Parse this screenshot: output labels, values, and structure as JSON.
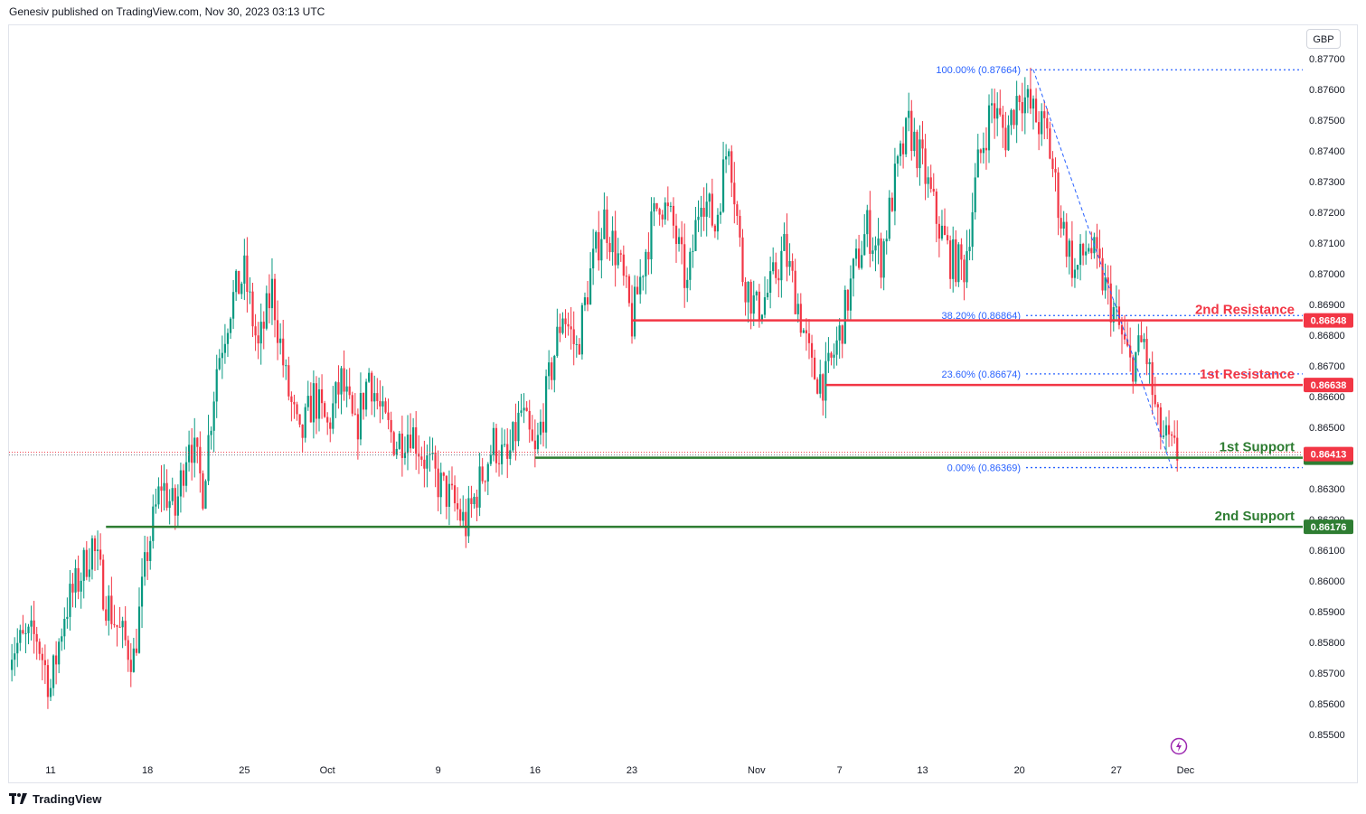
{
  "header": {
    "published": "Genesiv published on TradingView.com, Nov 30, 2023 03:13 UTC"
  },
  "currency": "GBP",
  "footer": {
    "brand": "TradingView",
    "logo_icon": "tradingview-logo-icon"
  },
  "colors": {
    "up": "#089981",
    "down": "#f23645",
    "support": "#2e7d32",
    "resistance": "#f23645",
    "fib": "#2962ff"
  },
  "chart_data": {
    "type": "candlestick",
    "ylim": [
      0.8546,
      0.8773
    ],
    "y_ticks": [
      "0.87700",
      "0.87600",
      "0.87500",
      "0.87400",
      "0.87300",
      "0.87200",
      "0.87100",
      "0.87000",
      "0.86900",
      "0.86800",
      "0.86700",
      "0.86600",
      "0.86500",
      "0.86300",
      "0.86200",
      "0.86100",
      "0.86000",
      "0.85900",
      "0.85800",
      "0.85700",
      "0.85600",
      "0.85500"
    ],
    "x_ticks": [
      {
        "label": "11",
        "day": 0
      },
      {
        "label": "18",
        "day": 7
      },
      {
        "label": "25",
        "day": 14
      },
      {
        "label": "Oct",
        "day": 20
      },
      {
        "label": "9",
        "day": 28
      },
      {
        "label": "16",
        "day": 35
      },
      {
        "label": "23",
        "day": 42
      },
      {
        "label": "Nov",
        "day": 51
      },
      {
        "label": "7",
        "day": 57
      },
      {
        "label": "13",
        "day": 63
      },
      {
        "label": "20",
        "day": 70
      },
      {
        "label": "27",
        "day": 77
      },
      {
        "label": "Dec",
        "day": 82
      }
    ],
    "x_range_days": [
      -3,
      90
    ],
    "close_path": [
      [
        -3,
        0.8578
      ],
      [
        -1,
        0.8582
      ],
      [
        0,
        0.8565
      ],
      [
        1,
        0.859
      ],
      [
        2,
        0.86
      ],
      [
        3,
        0.8612
      ],
      [
        4,
        0.8594
      ],
      [
        5,
        0.8583
      ],
      [
        6,
        0.8575
      ],
      [
        7,
        0.861
      ],
      [
        8,
        0.8632
      ],
      [
        9,
        0.8622
      ],
      [
        10,
        0.8648
      ],
      [
        11,
        0.863
      ],
      [
        12,
        0.867
      ],
      [
        13,
        0.869
      ],
      [
        14,
        0.87
      ],
      [
        15,
        0.8675
      ],
      [
        16,
        0.8695
      ],
      [
        17,
        0.8665
      ],
      [
        18,
        0.8645
      ],
      [
        19,
        0.866
      ],
      [
        20,
        0.865
      ],
      [
        21,
        0.8665
      ],
      [
        22,
        0.8648
      ],
      [
        23,
        0.8668
      ],
      [
        24,
        0.8652
      ],
      [
        25,
        0.8645
      ],
      [
        26,
        0.865
      ],
      [
        27,
        0.864
      ],
      [
        28,
        0.8632
      ],
      [
        29,
        0.8626
      ],
      [
        30,
        0.8618
      ],
      [
        31,
        0.8632
      ],
      [
        32,
        0.8645
      ],
      [
        33,
        0.8638
      ],
      [
        34,
        0.8655
      ],
      [
        35,
        0.864
      ],
      [
        36,
        0.8665
      ],
      [
        37,
        0.8688
      ],
      [
        38,
        0.8675
      ],
      [
        39,
        0.87
      ],
      [
        40,
        0.8718
      ],
      [
        41,
        0.8705
      ],
      [
        42,
        0.8684
      ],
      [
        43,
        0.8708
      ],
      [
        44,
        0.8725
      ],
      [
        45,
        0.8715
      ],
      [
        46,
        0.8695
      ],
      [
        47,
        0.8728
      ],
      [
        48,
        0.8715
      ],
      [
        49,
        0.8745
      ],
      [
        50,
        0.87
      ],
      [
        51,
        0.8688
      ],
      [
        52,
        0.8695
      ],
      [
        53,
        0.8708
      ],
      [
        54,
        0.869
      ],
      [
        55,
        0.8668
      ],
      [
        56,
        0.8665
      ],
      [
        57,
        0.868
      ],
      [
        58,
        0.87
      ],
      [
        59,
        0.8715
      ],
      [
        60,
        0.8705
      ],
      [
        61,
        0.873
      ],
      [
        62,
        0.8748
      ],
      [
        63,
        0.8735
      ],
      [
        64,
        0.8718
      ],
      [
        65,
        0.8705
      ],
      [
        66,
        0.8702
      ],
      [
        67,
        0.8735
      ],
      [
        68,
        0.8755
      ],
      [
        69,
        0.8745
      ],
      [
        70,
        0.876
      ],
      [
        71,
        0.8752
      ],
      [
        72,
        0.8745
      ],
      [
        73,
        0.8718
      ],
      [
        74,
        0.87
      ],
      [
        75,
        0.871
      ],
      [
        76,
        0.8698
      ],
      [
        77,
        0.8685
      ],
      [
        78,
        0.867
      ],
      [
        79,
        0.8678
      ],
      [
        80,
        0.865
      ],
      [
        81,
        0.8642
      ],
      [
        82,
        0.864
      ]
    ],
    "levels": [
      {
        "name": "2nd Resistance",
        "value": 0.86848,
        "label": "0.86848",
        "kind": "resistance",
        "from_day": 42
      },
      {
        "name": "1st Resistance",
        "value": 0.86638,
        "label": "0.86638",
        "kind": "resistance",
        "from_day": 56
      },
      {
        "name": "1st Support",
        "value": 0.86401,
        "label": "0.86401",
        "kind": "support",
        "from_day": 35
      },
      {
        "name": "2nd Support",
        "value": 0.86176,
        "label": "0.86176",
        "kind": "support",
        "from_day": 4
      }
    ],
    "current_price": {
      "value": 0.86413,
      "label": "0.86413"
    },
    "fib_levels": [
      {
        "label": "100.00% (0.87664)",
        "value": 0.87664
      },
      {
        "label": "38.20% (0.86864)",
        "value": 0.86864
      },
      {
        "label": "23.60% (0.86674)",
        "value": 0.86674
      },
      {
        "label": "0.00% (0.86369)",
        "value": 0.86369
      }
    ],
    "fib_trend": {
      "from": [
        71,
        0.87664
      ],
      "to": [
        81,
        0.86369
      ]
    }
  }
}
